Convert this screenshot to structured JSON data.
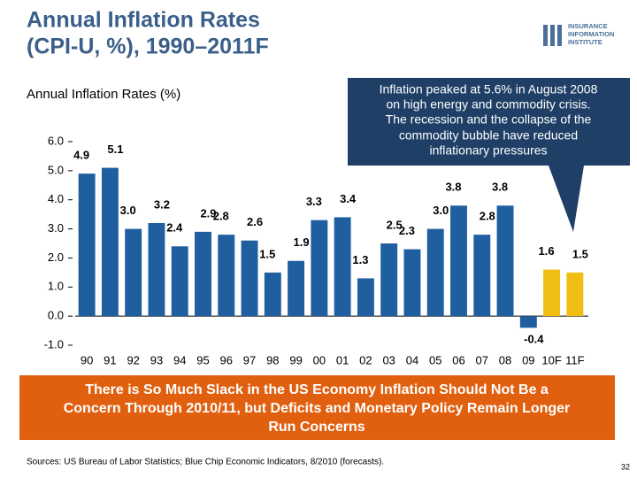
{
  "chart_data": {
    "type": "bar",
    "title": "Annual Inflation Rates",
    "title_line2": "(CPI-U, %), 1990–2011F",
    "subtitle": "Annual Inflation Rates (%)",
    "logo": [
      "INSURANCE",
      "INFORMATION",
      "INSTITUTE"
    ],
    "annotation": [
      "Inflation peaked at 5.6% in August 2008",
      "on high energy and commodity crisis.",
      "The recession and the collapse of the",
      "commodity bubble have reduced",
      "inflationary pressures"
    ],
    "banner": [
      "There is So Much Slack in the US Economy Inflation Should Not Be a",
      "Concern Through 2010/11, but Deficits and Monetary Policy Remain Longer",
      "Run Concerns"
    ],
    "source": "Sources: US Bureau of Labor Statistics; Blue Chip Economic Indicators, 8/2010 (forecasts).",
    "page_number": "32",
    "categories": [
      "90",
      "91",
      "92",
      "93",
      "94",
      "95",
      "96",
      "97",
      "98",
      "99",
      "00",
      "01",
      "02",
      "03",
      "04",
      "05",
      "06",
      "07",
      "08",
      "09",
      "10F",
      "11F"
    ],
    "values": [
      4.9,
      5.1,
      3.0,
      3.2,
      2.4,
      2.9,
      2.8,
      2.6,
      1.5,
      1.9,
      3.3,
      3.4,
      1.3,
      2.5,
      2.3,
      3.0,
      3.8,
      2.8,
      3.8,
      -0.4,
      1.6,
      1.5
    ],
    "value_labels": [
      "4.9",
      "5.1",
      "3.0",
      "3.2",
      "2.4",
      "2.9",
      "2.8",
      "2.6",
      "1.5",
      "1.9",
      "3.3",
      "3.4",
      "1.3",
      "2.5",
      "2.3",
      "3.0",
      "3.8",
      "2.8",
      "3.8",
      "-0.4",
      "1.6",
      "1.5"
    ],
    "colors": [
      "#1f5fa0",
      "#1f5fa0",
      "#1f5fa0",
      "#1f5fa0",
      "#1f5fa0",
      "#1f5fa0",
      "#1f5fa0",
      "#1f5fa0",
      "#1f5fa0",
      "#1f5fa0",
      "#1f5fa0",
      "#1f5fa0",
      "#1f5fa0",
      "#1f5fa0",
      "#1f5fa0",
      "#1f5fa0",
      "#1f5fa0",
      "#1f5fa0",
      "#1f5fa0",
      "#1f5fa0",
      "#f0bd12",
      "#f0bd12"
    ],
    "ylim": [
      -1,
      6
    ],
    "yticks": [
      {
        "value": -1,
        "label": "-1.0"
      },
      {
        "value": 0,
        "label": "0.0"
      },
      {
        "value": 1,
        "label": "1.0"
      },
      {
        "value": 2,
        "label": "2.0"
      },
      {
        "value": 3,
        "label": "3.0"
      },
      {
        "value": 4,
        "label": "4.0"
      },
      {
        "value": 5,
        "label": "5.0"
      },
      {
        "value": 6,
        "label": "6.0"
      }
    ]
  }
}
